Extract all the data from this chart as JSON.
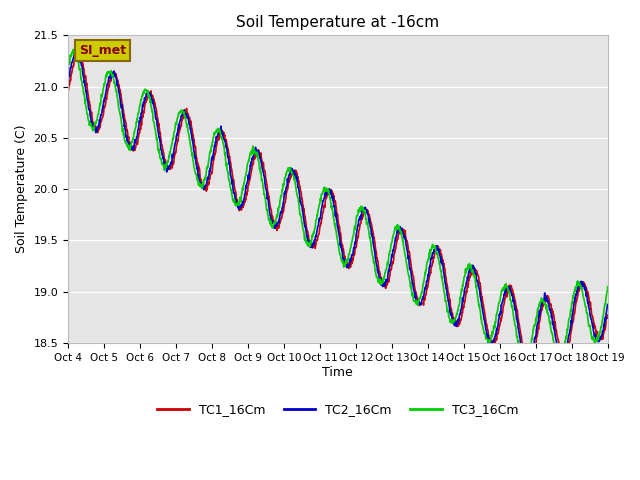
{
  "title": "Soil Temperature at -16cm",
  "ylabel": "Soil Temperature (C)",
  "xlabel": "Time",
  "ylim": [
    18.5,
    21.5
  ],
  "yticks": [
    18.5,
    19.0,
    19.5,
    20.0,
    20.5,
    21.0,
    21.5
  ],
  "xtick_labels": [
    "Oct 4",
    "Oct 5",
    "Oct 6",
    "Oct 7",
    "Oct 8",
    "Oct 9",
    "Oct 10",
    "Oct 11",
    "Oct 12",
    "Oct 13",
    "Oct 14",
    "Oct 15",
    "Oct 16",
    "Oct 17",
    "Oct 18",
    "Oct 19"
  ],
  "legend_labels": [
    "TC1_16Cm",
    "TC2_16Cm",
    "TC3_16Cm"
  ],
  "line_colors": [
    "#cc0000",
    "#0000cc",
    "#00cc00"
  ],
  "line_width": 1.2,
  "bg_color": "#e5e5e5",
  "fig_color": "#ffffff",
  "annotation_text": "SI_met",
  "annotation_bg": "#cccc00",
  "annotation_border": "#886600"
}
